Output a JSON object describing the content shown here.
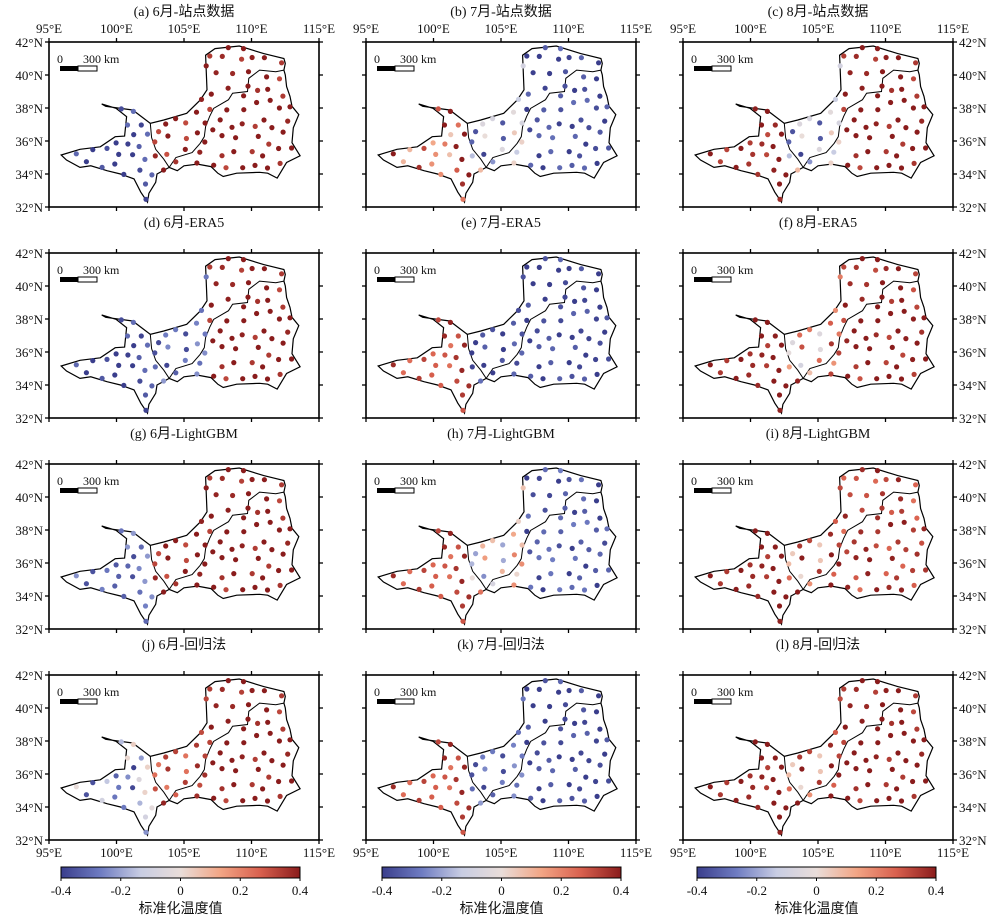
{
  "figure": {
    "panels": [
      {
        "title": "(a) 6月-站点数据",
        "month": "6月",
        "source": "站点数据",
        "regional_means": {
          "west": -0.38,
          "middle": 0.38,
          "east": 0.4
        }
      },
      {
        "title": "(b) 7月-站点数据",
        "month": "7月",
        "source": "站点数据",
        "regional_means": {
          "west": 0.25,
          "middle": -0.15,
          "east": -0.38
        }
      },
      {
        "title": "(c) 8月-站点数据",
        "month": "8月",
        "source": "站点数据",
        "regional_means": {
          "west": 0.38,
          "middle": -0.15,
          "east": 0.4
        }
      },
      {
        "title": "(d) 6月-ERA5",
        "month": "6月",
        "source": "ERA5",
        "regional_means": {
          "west": -0.38,
          "middle": -0.3,
          "east": 0.4
        }
      },
      {
        "title": "(e) 7月-ERA5",
        "month": "7月",
        "source": "ERA5",
        "regional_means": {
          "west": 0.3,
          "middle": -0.38,
          "east": -0.4
        }
      },
      {
        "title": "(f) 8月-ERA5",
        "month": "8月",
        "source": "ERA5",
        "regional_means": {
          "west": 0.4,
          "middle": 0.15,
          "east": 0.38
        }
      },
      {
        "title": "(g) 6月-LightGBM",
        "month": "6月",
        "source": "LightGBM",
        "regional_means": {
          "west": -0.3,
          "middle": 0.38,
          "east": 0.4
        }
      },
      {
        "title": "(h) 7月-LightGBM",
        "month": "7月",
        "source": "LightGBM",
        "regional_means": {
          "west": 0.3,
          "middle": 0.0,
          "east": -0.35
        }
      },
      {
        "title": "(i) 8月-LightGBM",
        "month": "8月",
        "source": "LightGBM",
        "regional_means": {
          "west": 0.4,
          "middle": 0.25,
          "east": 0.32
        }
      },
      {
        "title": "(j) 6月-回归法",
        "month": "6月",
        "source": "回归法",
        "regional_means": {
          "west": -0.2,
          "middle": 0.3,
          "east": 0.4
        }
      },
      {
        "title": "(k) 7月-回归法",
        "month": "7月",
        "source": "回归法",
        "regional_means": {
          "west": 0.3,
          "middle": -0.3,
          "east": -0.4
        }
      },
      {
        "title": "(l) 8月-回归法",
        "month": "8月",
        "source": "回归法",
        "regional_means": {
          "west": 0.4,
          "middle": 0.25,
          "east": 0.4
        }
      }
    ],
    "x_ticks": [
      "95°E",
      "100°E",
      "105°E",
      "110°E",
      "115°E"
    ],
    "y_ticks": [
      "32°N",
      "34°N",
      "36°N",
      "38°N",
      "40°N",
      "42°N"
    ],
    "lon_range": [
      95,
      115
    ],
    "lat_range": [
      32,
      42
    ],
    "scale_bar": {
      "zero": "0",
      "distance": "300 km"
    },
    "colorbar": {
      "ticks": [
        "-0.4",
        "-0.2",
        "0",
        "0.2",
        "0.4"
      ],
      "range": [
        -0.4,
        0.4
      ],
      "label": "标准化温度值",
      "colors": [
        "#3a3e8c",
        "#6f7cc2",
        "#c8cde3",
        "#e9ddd9",
        "#f2a585",
        "#d9604e",
        "#8a1c1c"
      ]
    }
  }
}
